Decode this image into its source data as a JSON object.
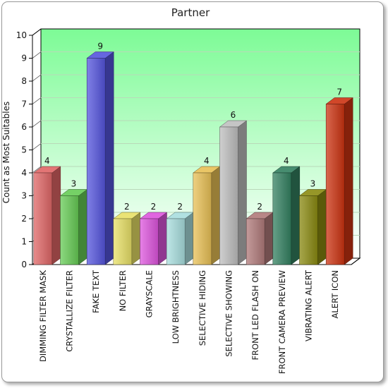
{
  "chart_data": {
    "type": "bar",
    "title": "Partner",
    "xlabel": "",
    "ylabel": "Count as Most Suitables",
    "ylim": [
      0,
      10
    ],
    "yticks": [
      0,
      1,
      2,
      3,
      4,
      5,
      6,
      7,
      8,
      9,
      10
    ],
    "grid": true,
    "legend": "none",
    "categories": [
      "DIMMING FILTER MASK",
      "CRYSTALLIZE FILTER",
      "FAKE TEXT",
      "NO FILTER",
      "GRAYSCALE",
      "LOW BRIGHTNESS",
      "SELECTIVE HIDING",
      "SELECTIVE SHOWING",
      "FRONT LED FLASH ON",
      "FRONT CAMERA PREVIEW",
      "VIBRATING ALERT",
      "ALERT ICON"
    ],
    "values": [
      4,
      3,
      9,
      2,
      2,
      2,
      4,
      6,
      2,
      4,
      3,
      7
    ],
    "bar_colors": [
      "#e06666",
      "#66cc55",
      "#5555dd",
      "#e8e066",
      "#dd55dd",
      "#a8dede",
      "#e8c055",
      "#bfbfbf",
      "#b07a7a",
      "#338060",
      "#8a8a10",
      "#cc3311"
    ],
    "background_gradient": [
      "#7dfb96",
      "#ffffff"
    ]
  }
}
